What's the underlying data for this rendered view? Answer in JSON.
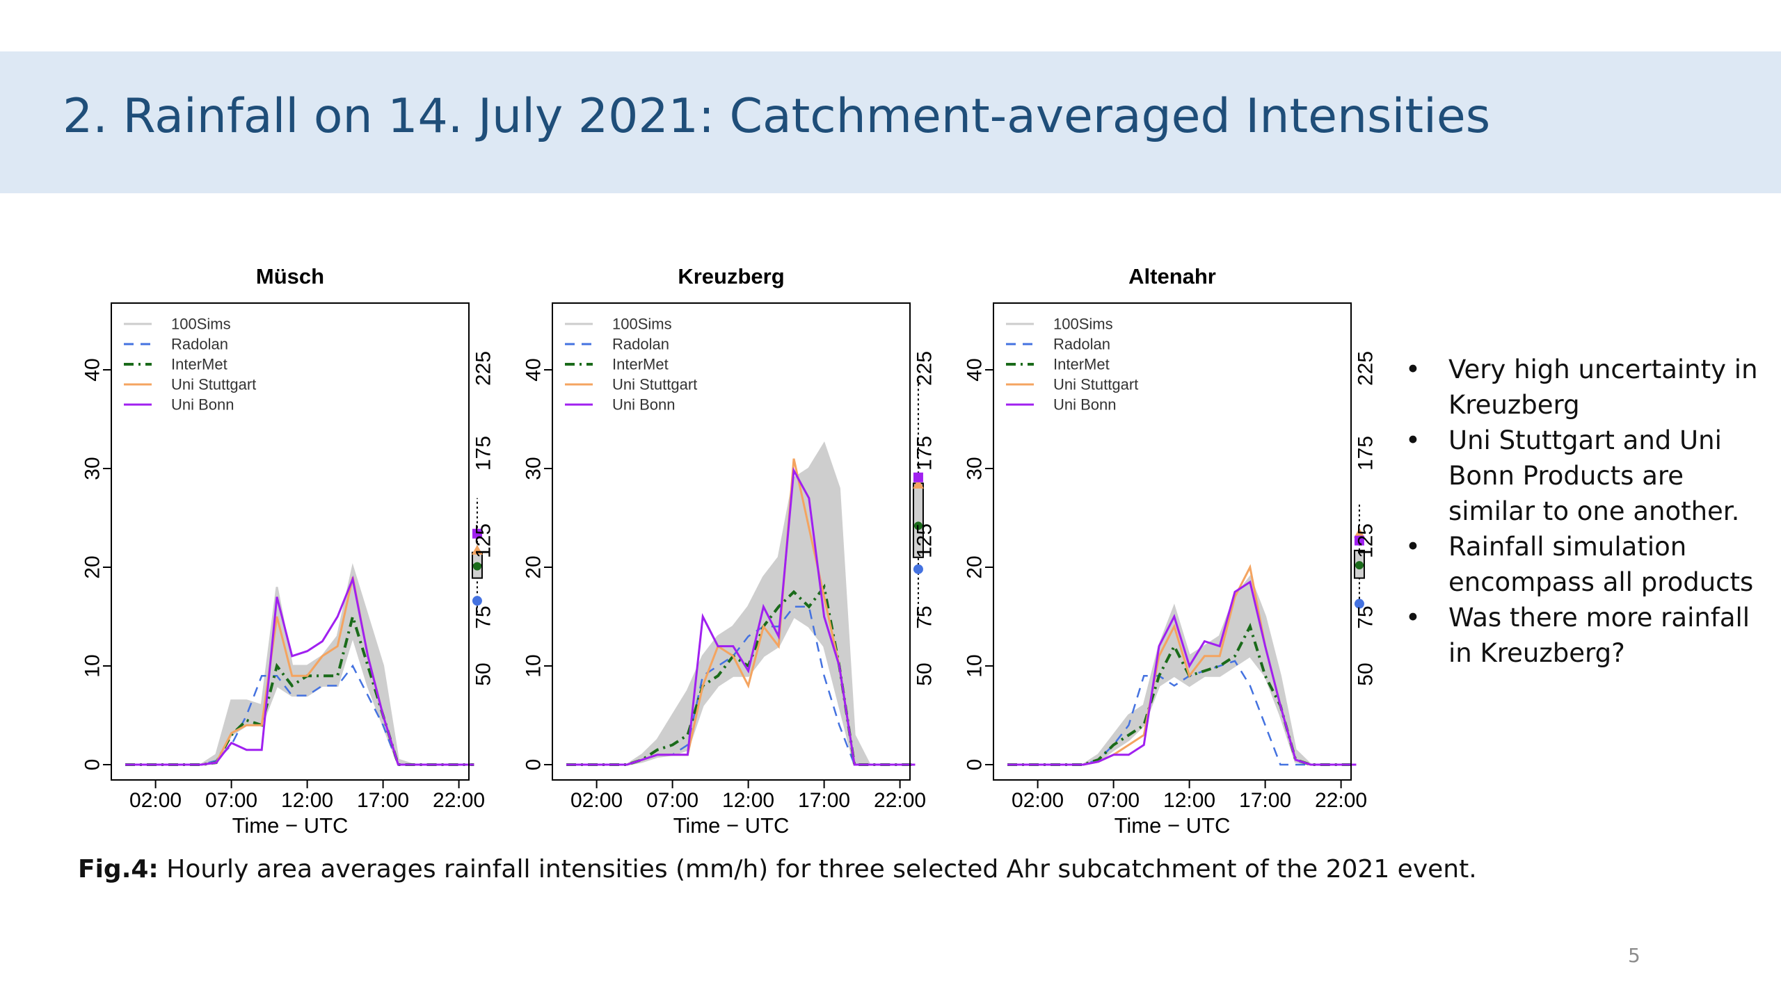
{
  "slide": {
    "title": "2. Rainfall on 14. July 2021: Catchment-averaged Intensities",
    "bullets": [
      "Very high uncertainty in Kreuzberg",
      "Uni Stuttgart and Uni Bonn Products are similar to one another.",
      "Rainfall simulation encompass all products",
      "Was there more rainfall in Kreuzberg?"
    ],
    "caption_label": "Fig.4:",
    "caption_text": " Hourly area averages rainfall intensities (mm/h) for three selected Ahr subcatchment of the 2021 event.",
    "page_number": "5"
  },
  "colors": {
    "sims": "#cccccc",
    "Radolan": "#4472e0",
    "InterMet": "#1a6b1a",
    "Uni Stuttgart": "#f4a460",
    "Uni Bonn": "#a020f0",
    "title_band": "#dde8f4",
    "title_text": "#1f4e79"
  },
  "chart_data": [
    {
      "type": "line",
      "title": "Müsch",
      "xlabel": "Time − UTC",
      "ylabel": "",
      "x": [
        0,
        1,
        2,
        3,
        4,
        5,
        6,
        7,
        8,
        9,
        10,
        11,
        12,
        13,
        14,
        15,
        16,
        17,
        18,
        19,
        20,
        21,
        22,
        23
      ],
      "xticks": [
        2,
        7,
        12,
        17,
        22
      ],
      "xticklabels": [
        "02:00",
        "07:00",
        "12:00",
        "17:00",
        "22:00"
      ],
      "ylim": [
        0,
        45
      ],
      "yticks": [
        0,
        10,
        20,
        30,
        40
      ],
      "right_axis_ticks": [
        "50",
        "75",
        "125",
        "175",
        "225"
      ],
      "legend": [
        "100Sims",
        "Radolan",
        "InterMet",
        "Uni Stuttgart",
        "Uni Bonn"
      ],
      "legend_position": "top-left",
      "series": [
        {
          "name": "Radolan",
          "values": [
            0,
            0,
            0,
            0,
            0,
            0,
            0.4,
            2,
            5,
            9,
            9,
            7,
            7,
            8,
            8,
            10,
            7,
            4,
            0,
            0,
            0,
            0,
            0,
            0
          ]
        },
        {
          "name": "InterMet",
          "values": [
            0,
            0,
            0,
            0,
            0,
            0,
            0.2,
            3,
            4.5,
            4,
            10,
            8,
            9,
            9,
            9,
            15,
            10,
            5,
            0,
            0,
            0,
            0,
            0,
            0
          ]
        },
        {
          "name": "Uni Stuttgart",
          "values": [
            0,
            0,
            0,
            0,
            0,
            0,
            0.2,
            3.2,
            4,
            4,
            15,
            9,
            9,
            11,
            12,
            19,
            11,
            5,
            0,
            0,
            0,
            0,
            0,
            0
          ]
        },
        {
          "name": "Uni Bonn",
          "values": [
            0,
            0,
            0,
            0,
            0,
            0,
            0.2,
            2.2,
            1.5,
            1.5,
            17,
            11,
            11.5,
            12.5,
            15,
            18.8,
            11,
            5,
            0,
            0,
            0,
            0,
            0,
            0
          ]
        }
      ],
      "sims_band": {
        "lower": [
          0,
          0,
          0,
          0,
          0,
          0,
          0.2,
          3,
          4,
          4,
          8,
          7,
          7,
          8,
          8,
          13,
          8,
          4,
          0,
          0,
          0,
          0,
          0,
          0
        ],
        "upper": [
          0,
          0,
          0,
          0,
          0,
          0,
          1,
          6.5,
          6.5,
          6,
          18,
          10,
          10,
          11,
          13,
          20,
          15,
          10,
          0.5,
          0,
          0,
          0,
          0,
          0
        ]
      },
      "boxplot": {
        "whisker_low": 15.4,
        "q1": 18.9,
        "median": 20.2,
        "q3": 21.5,
        "whisker_high": 27,
        "markers": {
          "Radolan": 16.6,
          "InterMet": 20.1,
          "Uni Stuttgart": 21.7,
          "Uni Bonn": 23.4
        }
      }
    },
    {
      "type": "line",
      "title": "Kreuzberg",
      "xlabel": "Time − UTC",
      "ylabel": "",
      "x": [
        0,
        1,
        2,
        3,
        4,
        5,
        6,
        7,
        8,
        9,
        10,
        11,
        12,
        13,
        14,
        15,
        16,
        17,
        18,
        19,
        20,
        21,
        22,
        23
      ],
      "xticks": [
        2,
        7,
        12,
        17,
        22
      ],
      "xticklabels": [
        "02:00",
        "07:00",
        "12:00",
        "17:00",
        "22:00"
      ],
      "ylim": [
        0,
        45
      ],
      "yticks": [
        0,
        10,
        20,
        30,
        40
      ],
      "right_axis_ticks": [
        "50",
        "75",
        "125",
        "175",
        "225"
      ],
      "legend": [
        "100Sims",
        "Radolan",
        "InterMet",
        "Uni Stuttgart",
        "Uni Bonn"
      ],
      "legend_position": "top-left",
      "series": [
        {
          "name": "Radolan",
          "values": [
            0,
            0,
            0,
            0,
            0,
            0.5,
            1,
            1,
            2,
            9,
            10,
            11,
            13,
            14,
            14,
            16,
            16,
            9,
            4,
            0,
            0,
            0,
            0,
            0
          ]
        },
        {
          "name": "InterMet",
          "values": [
            0,
            0,
            0,
            0,
            0,
            0.5,
            1.5,
            2,
            3,
            8,
            9,
            11,
            10,
            14,
            16,
            17.5,
            16,
            18,
            10,
            0,
            0,
            0,
            0,
            0
          ]
        },
        {
          "name": "Uni Stuttgart",
          "values": [
            0,
            0,
            0,
            0,
            0,
            0.5,
            1,
            1,
            1,
            8,
            12,
            11,
            8,
            14,
            12,
            31,
            24,
            17,
            10,
            0,
            0,
            0,
            0,
            0
          ]
        },
        {
          "name": "Uni Bonn",
          "values": [
            0,
            0,
            0,
            0,
            0,
            0.5,
            1,
            1,
            1,
            15,
            12,
            12,
            9.5,
            16,
            13,
            29.8,
            27,
            15,
            10,
            0,
            0,
            0,
            0,
            0
          ]
        }
      ],
      "sims_band": {
        "lower": [
          0,
          0,
          0,
          0,
          0,
          0.3,
          0.8,
          1,
          1.5,
          6,
          8,
          9,
          9,
          11,
          12,
          15,
          14,
          12,
          6,
          0,
          0,
          0,
          0,
          0
        ],
        "upper": [
          0,
          0,
          0,
          0,
          0,
          1,
          2.5,
          5,
          7.5,
          11,
          13,
          14,
          16,
          19,
          21,
          29,
          30,
          32.5,
          28,
          3,
          0,
          0,
          0,
          0
        ]
      },
      "boxplot": {
        "whisker_low": 14.8,
        "q1": 21,
        "median": 24.2,
        "q3": 28.5,
        "whisker_high": 39,
        "markers": {
          "Radolan": 19.8,
          "InterMet": 24.2,
          "Uni Stuttgart": 28.4,
          "Uni Bonn": 29.1
        }
      }
    },
    {
      "type": "line",
      "title": "Altenahr",
      "xlabel": "Time − UTC",
      "ylabel": "",
      "x": [
        0,
        1,
        2,
        3,
        4,
        5,
        6,
        7,
        8,
        9,
        10,
        11,
        12,
        13,
        14,
        15,
        16,
        17,
        18,
        19,
        20,
        21,
        22,
        23
      ],
      "xticks": [
        2,
        7,
        12,
        17,
        22
      ],
      "xticklabels": [
        "02:00",
        "07:00",
        "12:00",
        "17:00",
        "22:00"
      ],
      "ylim": [
        0,
        45
      ],
      "yticks": [
        0,
        10,
        20,
        30,
        40
      ],
      "right_axis_ticks": [
        "50",
        "75",
        "125",
        "175",
        "225"
      ],
      "legend": [
        "100Sims",
        "Radolan",
        "InterMet",
        "Uni Stuttgart",
        "Uni Bonn"
      ],
      "legend_position": "top-left",
      "series": [
        {
          "name": "Radolan",
          "values": [
            0,
            0,
            0,
            0,
            0,
            0,
            0.5,
            2,
            4,
            9,
            9,
            8,
            9,
            9.5,
            10,
            10.5,
            8,
            4,
            0,
            0,
            0,
            0,
            0,
            0
          ]
        },
        {
          "name": "InterMet",
          "values": [
            0,
            0,
            0,
            0,
            0,
            0,
            0.5,
            2,
            3,
            4,
            9,
            12,
            9,
            9.5,
            10,
            11,
            14,
            9,
            6,
            0.5,
            0,
            0,
            0,
            0
          ]
        },
        {
          "name": "Uni Stuttgart",
          "values": [
            0,
            0,
            0,
            0,
            0,
            0,
            0.3,
            1,
            2,
            3,
            11,
            14,
            9,
            11,
            11,
            17,
            20,
            12,
            6,
            0.5,
            0,
            0,
            0,
            0
          ]
        },
        {
          "name": "Uni Bonn",
          "values": [
            0,
            0,
            0,
            0,
            0,
            0,
            0.3,
            1,
            1,
            2,
            12,
            15,
            10,
            12.5,
            12,
            17.5,
            18.5,
            12,
            6,
            0.5,
            0,
            0,
            0,
            0
          ]
        }
      ],
      "sims_band": {
        "lower": [
          0,
          0,
          0,
          0,
          0,
          0,
          0.3,
          1.5,
          2.5,
          4,
          8,
          9,
          8,
          9,
          9,
          10,
          11,
          9,
          5,
          0.3,
          0,
          0,
          0,
          0
        ],
        "upper": [
          0,
          0,
          0,
          0,
          0,
          0,
          1,
          3,
          5,
          6,
          12,
          16,
          11,
          12,
          13,
          17,
          19,
          15,
          9,
          1.5,
          0,
          0,
          0,
          0
        ]
      },
      "boxplot": {
        "whisker_low": 16.3,
        "q1": 18.9,
        "median": 20.2,
        "q3": 21.7,
        "whisker_high": 26.5,
        "markers": {
          "Radolan": 16.3,
          "InterMet": 20.2,
          "Uni Stuttgart": 23.4,
          "Uni Bonn": 22.7
        }
      }
    }
  ]
}
